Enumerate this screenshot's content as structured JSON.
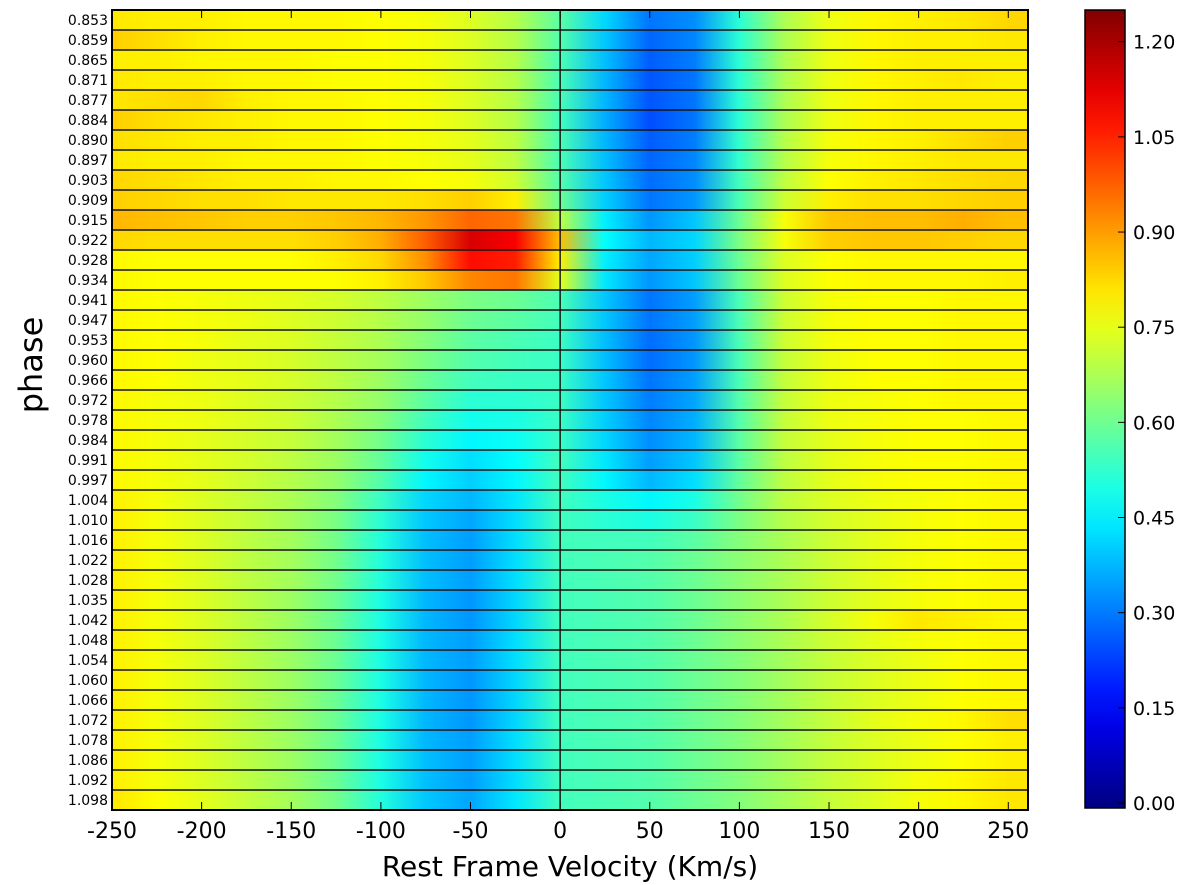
{
  "chart_data": {
    "type": "heatmap",
    "title": "",
    "xlabel": "Rest Frame Velocity (Km/s)",
    "ylabel": "phase",
    "xlim": [
      -250,
      261
    ],
    "xticks": [
      -250,
      -200,
      -150,
      -100,
      -50,
      0,
      50,
      100,
      150,
      200,
      250
    ],
    "colormap": "jet",
    "clim": [
      0.0,
      1.25
    ],
    "colorbar_ticks": [
      "0.00",
      "0.15",
      "0.30",
      "0.45",
      "0.60",
      "0.75",
      "0.90",
      "1.05",
      "1.20"
    ],
    "velocities": [
      -250,
      -225,
      -200,
      -175,
      -150,
      -125,
      -100,
      -75,
      -50,
      -25,
      0,
      25,
      50,
      75,
      100,
      125,
      150,
      175,
      200,
      225,
      250
    ],
    "phases": [
      "0.853",
      "0.859",
      "0.865",
      "0.871",
      "0.877",
      "0.884",
      "0.890",
      "0.897",
      "0.903",
      "0.909",
      "0.915",
      "0.922",
      "0.928",
      "0.934",
      "0.941",
      "0.947",
      "0.953",
      "0.960",
      "0.966",
      "0.972",
      "0.978",
      "0.984",
      "0.991",
      "0.997",
      "1.004",
      "1.010",
      "1.016",
      "1.022",
      "1.028",
      "1.035",
      "1.042",
      "1.048",
      "1.054",
      "1.060",
      "1.066",
      "1.072",
      "1.078",
      "1.086",
      "1.092",
      "1.098"
    ],
    "values": [
      [
        0.81,
        0.8,
        0.8,
        0.79,
        0.79,
        0.79,
        0.78,
        0.77,
        0.74,
        0.69,
        0.58,
        0.42,
        0.3,
        0.33,
        0.52,
        0.68,
        0.76,
        0.79,
        0.8,
        0.81,
        0.83
      ],
      [
        0.84,
        0.82,
        0.8,
        0.79,
        0.79,
        0.79,
        0.78,
        0.77,
        0.74,
        0.69,
        0.57,
        0.4,
        0.28,
        0.32,
        0.52,
        0.68,
        0.76,
        0.79,
        0.8,
        0.8,
        0.81
      ],
      [
        0.8,
        0.8,
        0.79,
        0.79,
        0.79,
        0.78,
        0.78,
        0.77,
        0.74,
        0.69,
        0.56,
        0.39,
        0.27,
        0.31,
        0.52,
        0.68,
        0.76,
        0.79,
        0.8,
        0.8,
        0.8
      ],
      [
        0.81,
        0.8,
        0.8,
        0.79,
        0.79,
        0.78,
        0.78,
        0.77,
        0.74,
        0.69,
        0.56,
        0.38,
        0.26,
        0.3,
        0.52,
        0.68,
        0.76,
        0.79,
        0.8,
        0.81,
        0.8
      ],
      [
        0.81,
        0.82,
        0.83,
        0.8,
        0.79,
        0.79,
        0.78,
        0.77,
        0.74,
        0.69,
        0.56,
        0.38,
        0.26,
        0.3,
        0.52,
        0.68,
        0.76,
        0.79,
        0.8,
        0.8,
        0.8
      ],
      [
        0.84,
        0.82,
        0.81,
        0.8,
        0.79,
        0.79,
        0.78,
        0.77,
        0.74,
        0.69,
        0.55,
        0.37,
        0.25,
        0.3,
        0.52,
        0.68,
        0.76,
        0.79,
        0.8,
        0.8,
        0.8
      ],
      [
        0.82,
        0.81,
        0.8,
        0.8,
        0.79,
        0.79,
        0.78,
        0.77,
        0.75,
        0.7,
        0.56,
        0.38,
        0.27,
        0.31,
        0.53,
        0.69,
        0.77,
        0.79,
        0.8,
        0.82,
        0.84
      ],
      [
        0.81,
        0.8,
        0.8,
        0.79,
        0.79,
        0.79,
        0.78,
        0.77,
        0.75,
        0.7,
        0.56,
        0.39,
        0.28,
        0.32,
        0.53,
        0.69,
        0.77,
        0.79,
        0.8,
        0.81,
        0.81
      ],
      [
        0.83,
        0.82,
        0.81,
        0.8,
        0.8,
        0.79,
        0.79,
        0.78,
        0.77,
        0.72,
        0.57,
        0.4,
        0.29,
        0.33,
        0.55,
        0.7,
        0.78,
        0.8,
        0.81,
        0.82,
        0.83
      ],
      [
        0.84,
        0.83,
        0.82,
        0.82,
        0.81,
        0.81,
        0.81,
        0.82,
        0.84,
        0.8,
        0.6,
        0.41,
        0.3,
        0.34,
        0.56,
        0.72,
        0.8,
        0.82,
        0.82,
        0.83,
        0.84
      ],
      [
        0.87,
        0.86,
        0.85,
        0.84,
        0.84,
        0.85,
        0.87,
        0.91,
        0.97,
        0.95,
        0.7,
        0.45,
        0.34,
        0.4,
        0.6,
        0.77,
        0.85,
        0.86,
        0.86,
        0.88,
        0.86
      ],
      [
        0.83,
        0.82,
        0.82,
        0.82,
        0.82,
        0.84,
        0.88,
        0.98,
        1.14,
        1.1,
        0.86,
        0.47,
        0.38,
        0.42,
        0.62,
        0.77,
        0.84,
        0.85,
        0.85,
        0.84,
        0.83
      ],
      [
        0.79,
        0.78,
        0.78,
        0.78,
        0.78,
        0.8,
        0.83,
        0.92,
        1.08,
        1.06,
        0.8,
        0.45,
        0.36,
        0.41,
        0.6,
        0.74,
        0.78,
        0.79,
        0.79,
        0.79,
        0.79
      ],
      [
        0.79,
        0.78,
        0.78,
        0.78,
        0.78,
        0.78,
        0.8,
        0.85,
        0.93,
        0.95,
        0.75,
        0.44,
        0.34,
        0.4,
        0.6,
        0.74,
        0.78,
        0.79,
        0.79,
        0.79,
        0.8
      ],
      [
        0.79,
        0.78,
        0.77,
        0.76,
        0.75,
        0.73,
        0.7,
        0.66,
        0.62,
        0.6,
        0.56,
        0.4,
        0.3,
        0.35,
        0.56,
        0.72,
        0.77,
        0.78,
        0.78,
        0.79,
        0.79
      ],
      [
        0.79,
        0.78,
        0.77,
        0.76,
        0.74,
        0.72,
        0.69,
        0.65,
        0.6,
        0.58,
        0.55,
        0.4,
        0.3,
        0.35,
        0.56,
        0.72,
        0.77,
        0.78,
        0.78,
        0.79,
        0.79
      ],
      [
        0.79,
        0.78,
        0.77,
        0.75,
        0.74,
        0.71,
        0.68,
        0.63,
        0.58,
        0.56,
        0.54,
        0.39,
        0.29,
        0.34,
        0.56,
        0.72,
        0.77,
        0.78,
        0.78,
        0.79,
        0.79
      ],
      [
        0.79,
        0.78,
        0.76,
        0.75,
        0.73,
        0.7,
        0.67,
        0.62,
        0.57,
        0.55,
        0.54,
        0.39,
        0.29,
        0.34,
        0.56,
        0.71,
        0.76,
        0.78,
        0.78,
        0.79,
        0.79
      ],
      [
        0.79,
        0.78,
        0.76,
        0.75,
        0.73,
        0.7,
        0.66,
        0.6,
        0.55,
        0.54,
        0.54,
        0.4,
        0.3,
        0.35,
        0.56,
        0.71,
        0.76,
        0.78,
        0.78,
        0.79,
        0.79
      ],
      [
        0.79,
        0.77,
        0.76,
        0.74,
        0.72,
        0.69,
        0.65,
        0.58,
        0.52,
        0.52,
        0.54,
        0.4,
        0.31,
        0.36,
        0.57,
        0.71,
        0.76,
        0.77,
        0.78,
        0.79,
        0.79
      ],
      [
        0.79,
        0.77,
        0.76,
        0.74,
        0.72,
        0.68,
        0.63,
        0.55,
        0.49,
        0.5,
        0.54,
        0.41,
        0.32,
        0.37,
        0.57,
        0.71,
        0.76,
        0.77,
        0.78,
        0.78,
        0.79
      ],
      [
        0.79,
        0.77,
        0.75,
        0.73,
        0.71,
        0.67,
        0.61,
        0.52,
        0.46,
        0.48,
        0.54,
        0.42,
        0.33,
        0.38,
        0.58,
        0.71,
        0.75,
        0.77,
        0.78,
        0.78,
        0.79
      ],
      [
        0.79,
        0.77,
        0.75,
        0.73,
        0.7,
        0.66,
        0.59,
        0.49,
        0.43,
        0.47,
        0.55,
        0.44,
        0.35,
        0.4,
        0.58,
        0.7,
        0.75,
        0.77,
        0.78,
        0.78,
        0.79
      ],
      [
        0.79,
        0.77,
        0.75,
        0.72,
        0.69,
        0.65,
        0.57,
        0.46,
        0.41,
        0.46,
        0.55,
        0.46,
        0.38,
        0.43,
        0.59,
        0.7,
        0.75,
        0.77,
        0.78,
        0.78,
        0.79
      ],
      [
        0.8,
        0.77,
        0.74,
        0.71,
        0.68,
        0.63,
        0.54,
        0.42,
        0.38,
        0.44,
        0.55,
        0.5,
        0.46,
        0.5,
        0.61,
        0.7,
        0.74,
        0.76,
        0.77,
        0.78,
        0.79
      ],
      [
        0.8,
        0.77,
        0.74,
        0.71,
        0.67,
        0.62,
        0.52,
        0.4,
        0.36,
        0.43,
        0.55,
        0.52,
        0.5,
        0.54,
        0.62,
        0.69,
        0.73,
        0.75,
        0.77,
        0.78,
        0.79
      ],
      [
        0.8,
        0.77,
        0.74,
        0.7,
        0.67,
        0.61,
        0.51,
        0.39,
        0.35,
        0.43,
        0.55,
        0.55,
        0.55,
        0.58,
        0.63,
        0.68,
        0.72,
        0.75,
        0.77,
        0.78,
        0.79
      ],
      [
        0.8,
        0.77,
        0.74,
        0.7,
        0.67,
        0.61,
        0.51,
        0.39,
        0.35,
        0.43,
        0.55,
        0.56,
        0.57,
        0.6,
        0.64,
        0.68,
        0.72,
        0.75,
        0.77,
        0.78,
        0.79
      ],
      [
        0.8,
        0.77,
        0.74,
        0.7,
        0.67,
        0.61,
        0.51,
        0.39,
        0.35,
        0.43,
        0.55,
        0.56,
        0.57,
        0.6,
        0.64,
        0.68,
        0.72,
        0.75,
        0.77,
        0.78,
        0.79
      ],
      [
        0.8,
        0.77,
        0.74,
        0.7,
        0.66,
        0.6,
        0.5,
        0.38,
        0.34,
        0.42,
        0.55,
        0.56,
        0.57,
        0.6,
        0.64,
        0.68,
        0.72,
        0.75,
        0.77,
        0.78,
        0.79
      ],
      [
        0.8,
        0.77,
        0.74,
        0.7,
        0.66,
        0.6,
        0.5,
        0.38,
        0.34,
        0.42,
        0.55,
        0.56,
        0.57,
        0.6,
        0.64,
        0.68,
        0.73,
        0.77,
        0.81,
        0.8,
        0.79
      ],
      [
        0.8,
        0.77,
        0.74,
        0.7,
        0.66,
        0.6,
        0.5,
        0.38,
        0.35,
        0.43,
        0.55,
        0.56,
        0.57,
        0.6,
        0.64,
        0.68,
        0.72,
        0.75,
        0.77,
        0.78,
        0.79
      ],
      [
        0.8,
        0.77,
        0.74,
        0.7,
        0.66,
        0.6,
        0.5,
        0.38,
        0.35,
        0.43,
        0.55,
        0.56,
        0.57,
        0.6,
        0.63,
        0.67,
        0.71,
        0.74,
        0.76,
        0.78,
        0.79
      ],
      [
        0.8,
        0.77,
        0.74,
        0.7,
        0.66,
        0.6,
        0.5,
        0.38,
        0.34,
        0.42,
        0.55,
        0.56,
        0.57,
        0.6,
        0.63,
        0.67,
        0.71,
        0.74,
        0.76,
        0.78,
        0.79
      ],
      [
        0.8,
        0.77,
        0.74,
        0.7,
        0.66,
        0.6,
        0.5,
        0.38,
        0.34,
        0.42,
        0.55,
        0.56,
        0.57,
        0.6,
        0.63,
        0.67,
        0.71,
        0.74,
        0.76,
        0.78,
        0.79
      ],
      [
        0.8,
        0.77,
        0.74,
        0.7,
        0.66,
        0.6,
        0.5,
        0.38,
        0.34,
        0.42,
        0.55,
        0.56,
        0.57,
        0.6,
        0.63,
        0.67,
        0.71,
        0.75,
        0.77,
        0.79,
        0.82
      ],
      [
        0.8,
        0.77,
        0.74,
        0.7,
        0.66,
        0.6,
        0.5,
        0.38,
        0.35,
        0.43,
        0.55,
        0.56,
        0.57,
        0.6,
        0.63,
        0.67,
        0.71,
        0.74,
        0.76,
        0.78,
        0.8
      ],
      [
        0.8,
        0.77,
        0.74,
        0.7,
        0.66,
        0.6,
        0.5,
        0.39,
        0.35,
        0.43,
        0.55,
        0.56,
        0.57,
        0.6,
        0.63,
        0.67,
        0.71,
        0.74,
        0.76,
        0.78,
        0.8
      ],
      [
        0.8,
        0.77,
        0.74,
        0.7,
        0.66,
        0.6,
        0.5,
        0.39,
        0.35,
        0.43,
        0.55,
        0.56,
        0.57,
        0.6,
        0.63,
        0.67,
        0.71,
        0.74,
        0.77,
        0.79,
        0.81
      ],
      [
        0.81,
        0.78,
        0.75,
        0.71,
        0.67,
        0.61,
        0.51,
        0.4,
        0.36,
        0.44,
        0.55,
        0.56,
        0.57,
        0.6,
        0.63,
        0.67,
        0.71,
        0.74,
        0.77,
        0.79,
        0.81
      ]
    ]
  }
}
